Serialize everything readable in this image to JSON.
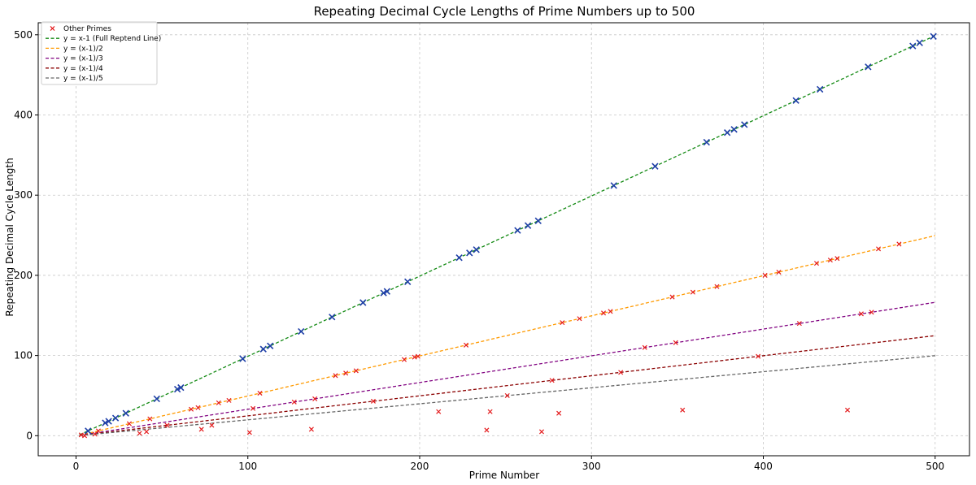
{
  "chart_data": {
    "type": "scatter",
    "title": "Repeating Decimal Cycle Lengths of Prime Numbers up to 500",
    "xlabel": "Prime Number",
    "ylabel": "Repeating Decimal Cycle Length",
    "xlim": [
      -22,
      520
    ],
    "ylim": [
      -25,
      515
    ],
    "xticks": [
      0,
      100,
      200,
      300,
      400,
      500
    ],
    "yticks": [
      0,
      100,
      200,
      300,
      400,
      500
    ],
    "grid": true,
    "legend_position": "top-left",
    "colors": {
      "full_reptend_points": "#1f3fa8",
      "other_points": "#e41a1c",
      "line_full": "#138a13",
      "line_half": "#ff9a00",
      "line_third": "#800080",
      "line_quarter": "#8b0000",
      "line_fifth": "#666666"
    },
    "series": [
      {
        "name": "Other Primes",
        "marker": "x",
        "color": "#e41a1c",
        "points": [
          [
            3,
            1
          ],
          [
            5,
            0
          ],
          [
            11,
            2
          ],
          [
            13,
            6
          ],
          [
            31,
            15
          ],
          [
            37,
            3
          ],
          [
            41,
            5
          ],
          [
            43,
            21
          ],
          [
            53,
            13
          ],
          [
            67,
            33
          ],
          [
            71,
            35
          ],
          [
            73,
            8
          ],
          [
            79,
            13
          ],
          [
            83,
            41
          ],
          [
            89,
            44
          ],
          [
            101,
            4
          ],
          [
            103,
            34
          ],
          [
            107,
            53
          ],
          [
            127,
            42
          ],
          [
            137,
            8
          ],
          [
            139,
            46
          ],
          [
            151,
            75
          ],
          [
            157,
            78
          ],
          [
            163,
            81
          ],
          [
            173,
            43
          ],
          [
            191,
            95
          ],
          [
            197,
            98
          ],
          [
            199,
            99
          ],
          [
            211,
            30
          ],
          [
            227,
            113
          ],
          [
            239,
            7
          ],
          [
            241,
            30
          ],
          [
            251,
            50
          ],
          [
            271,
            5
          ],
          [
            277,
            69
          ],
          [
            281,
            28
          ],
          [
            283,
            141
          ],
          [
            293,
            146
          ],
          [
            307,
            153
          ],
          [
            311,
            155
          ],
          [
            317,
            79
          ],
          [
            331,
            110
          ],
          [
            347,
            173
          ],
          [
            349,
            116
          ],
          [
            353,
            32
          ],
          [
            359,
            179
          ],
          [
            373,
            186
          ],
          [
            397,
            99
          ],
          [
            401,
            200
          ],
          [
            409,
            204
          ],
          [
            421,
            140
          ],
          [
            431,
            215
          ],
          [
            439,
            219
          ],
          [
            443,
            221
          ],
          [
            449,
            32
          ],
          [
            457,
            152
          ],
          [
            463,
            154
          ],
          [
            467,
            233
          ],
          [
            479,
            239
          ]
        ]
      },
      {
        "name": "",
        "marker": "x",
        "color": "#1f3fa8",
        "points": [
          [
            7,
            6
          ],
          [
            17,
            16
          ],
          [
            19,
            18
          ],
          [
            23,
            22
          ],
          [
            29,
            28
          ],
          [
            47,
            46
          ],
          [
            59,
            58
          ],
          [
            61,
            60
          ],
          [
            97,
            96
          ],
          [
            109,
            108
          ],
          [
            113,
            112
          ],
          [
            131,
            130
          ],
          [
            149,
            148
          ],
          [
            167,
            166
          ],
          [
            179,
            178
          ],
          [
            181,
            180
          ],
          [
            193,
            192
          ],
          [
            223,
            222
          ],
          [
            229,
            228
          ],
          [
            233,
            232
          ],
          [
            257,
            256
          ],
          [
            263,
            262
          ],
          [
            269,
            268
          ],
          [
            313,
            312
          ],
          [
            337,
            336
          ],
          [
            367,
            366
          ],
          [
            379,
            378
          ],
          [
            383,
            382
          ],
          [
            389,
            388
          ],
          [
            419,
            418
          ],
          [
            433,
            432
          ],
          [
            461,
            460
          ],
          [
            487,
            486
          ],
          [
            491,
            490
          ],
          [
            499,
            498
          ]
        ]
      }
    ],
    "lines": [
      {
        "name": "y = x-1 (Full Reptend Line)",
        "divisor": 1,
        "color": "#138a13"
      },
      {
        "name": "y = (x-1)/2",
        "divisor": 2,
        "color": "#ff9a00"
      },
      {
        "name": "y = (x-1)/3",
        "divisor": 3,
        "color": "#800080"
      },
      {
        "name": "y = (x-1)/4",
        "divisor": 4,
        "color": "#8b0000"
      },
      {
        "name": "y = (x-1)/5",
        "divisor": 5,
        "color": "#666666"
      }
    ],
    "line_x_range": [
      2,
      500
    ]
  }
}
